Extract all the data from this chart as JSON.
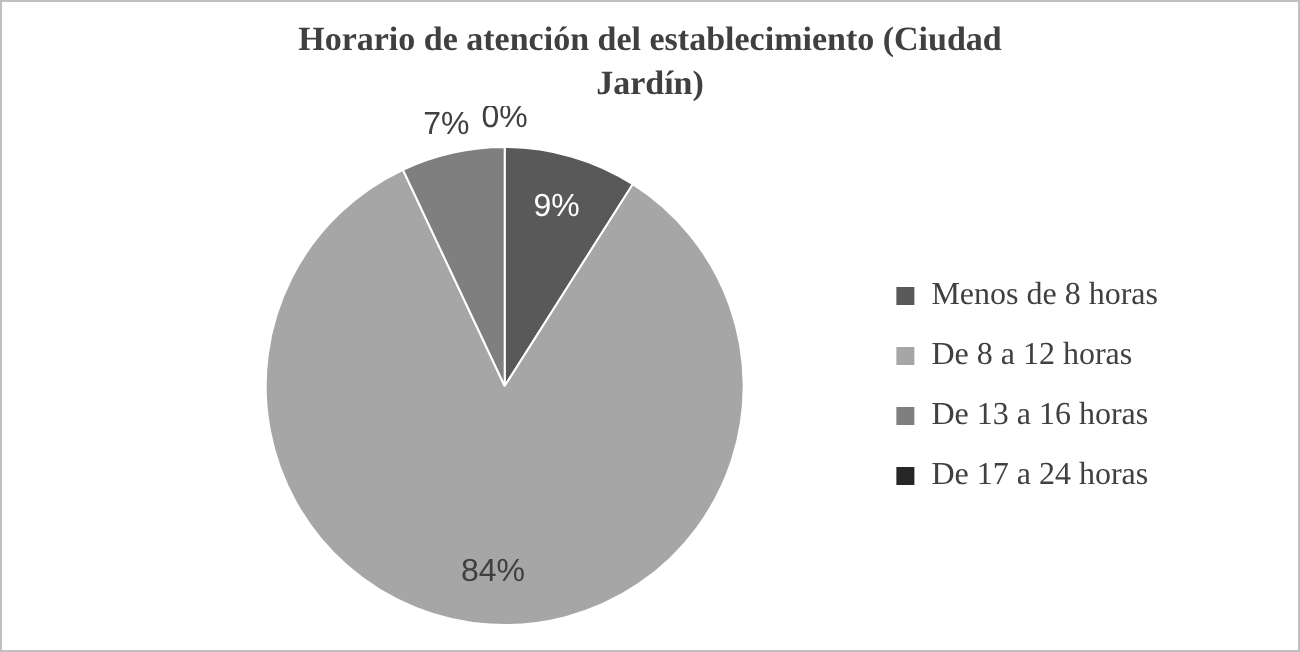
{
  "chart_data": {
    "type": "pie",
    "title": "Horario de atención del establecimiento (Ciudad Jardín)",
    "categories": [
      "Menos de 8 horas",
      "De 8 a 12 horas",
      "De 13 a 16 horas",
      "De 17 a 24 horas"
    ],
    "values": [
      9,
      84,
      7,
      0
    ],
    "colors": [
      "#595959",
      "#a6a6a6",
      "#7f7f7f",
      "#262626"
    ],
    "value_labels": [
      "9%",
      "84%",
      "7%",
      "0%"
    ],
    "legend": "right"
  }
}
